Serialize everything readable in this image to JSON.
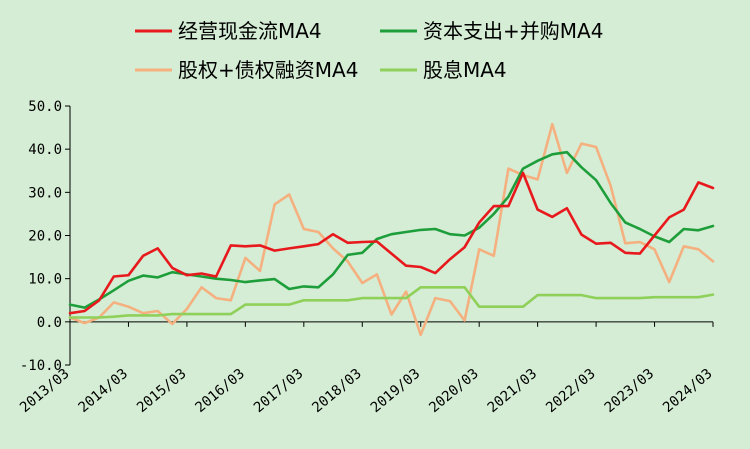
{
  "chart_data": {
    "type": "line",
    "ylim": [
      -10,
      50
    ],
    "yticks": [
      "50.0",
      "40.0",
      "30.0",
      "20.0",
      "10.0",
      "0.0",
      "-10.0"
    ],
    "ytick_values": [
      50,
      40,
      30,
      20,
      10,
      0,
      -10
    ],
    "x": [
      "2013/03",
      "2013/06",
      "2013/09",
      "2013/12",
      "2014/03",
      "2014/06",
      "2014/09",
      "2014/12",
      "2015/03",
      "2015/06",
      "2015/09",
      "2015/12",
      "2016/03",
      "2016/06",
      "2016/09",
      "2016/12",
      "2017/03",
      "2017/06",
      "2017/09",
      "2017/12",
      "2018/03",
      "2018/06",
      "2018/09",
      "2018/12",
      "2019/03",
      "2019/06",
      "2019/09",
      "2019/12",
      "2020/03",
      "2020/06",
      "2020/09",
      "2020/12",
      "2021/03",
      "2021/06",
      "2021/09",
      "2021/12",
      "2022/03",
      "2022/06",
      "2022/09",
      "2022/12",
      "2023/03",
      "2023/06",
      "2023/09",
      "2023/12",
      "2024/03"
    ],
    "xtick_labels": [
      "2013/03",
      "2014/03",
      "2015/03",
      "2016/03",
      "2017/03",
      "2018/03",
      "2019/03",
      "2020/03",
      "2021/03",
      "2022/03",
      "2023/03",
      "2024/03"
    ],
    "legend": {
      "placement": "top",
      "columns": 2
    },
    "grid": false,
    "series": [
      {
        "name": "经营现金流MA4",
        "color": "#e8191c",
        "values": [
          2.0,
          2.5,
          5.0,
          10.5,
          10.8,
          15.3,
          17.0,
          12.5,
          10.8,
          11.2,
          10.5,
          17.7,
          17.5,
          17.7,
          16.5,
          17.0,
          17.5,
          18.0,
          20.3,
          18.3,
          18.5,
          18.6,
          15.8,
          13.0,
          12.7,
          11.3,
          14.5,
          17.3,
          23.0,
          26.8,
          26.8,
          34.5,
          26.0,
          24.3,
          26.3,
          20.2,
          18.1,
          18.3,
          16.0,
          15.8,
          20.0,
          24.2,
          26.0,
          32.3,
          31.0
        ]
      },
      {
        "name": "资本支出+并购MA4",
        "color": "#1e9e3a",
        "values": [
          4.0,
          3.3,
          5.2,
          7.3,
          9.5,
          10.7,
          10.3,
          11.5,
          11.0,
          10.5,
          10.0,
          9.7,
          9.2,
          9.6,
          9.9,
          7.6,
          8.2,
          8.0,
          11.0,
          15.5,
          16.0,
          19.2,
          20.3,
          20.8,
          21.3,
          21.5,
          20.3,
          20.0,
          21.8,
          25.0,
          29.0,
          35.5,
          37.3,
          38.8,
          39.3,
          35.8,
          32.8,
          27.5,
          23.0,
          21.5,
          19.8,
          18.5,
          21.5,
          21.2,
          22.2
        ]
      },
      {
        "name": "股权+债权融资MA4",
        "color": "#f5b080",
        "values": [
          1.0,
          -0.3,
          1.0,
          4.5,
          3.5,
          2.0,
          2.5,
          -0.5,
          3.0,
          8.0,
          5.5,
          5.0,
          14.8,
          11.8,
          27.2,
          29.5,
          21.5,
          20.8,
          17.0,
          14.0,
          9.0,
          11.0,
          1.7,
          7.0,
          -3.0,
          5.5,
          4.8,
          0.3,
          16.8,
          15.3,
          35.5,
          34.0,
          33.0,
          45.8,
          34.5,
          41.3,
          40.5,
          31.5,
          18.2,
          18.5,
          16.8,
          9.2,
          17.5,
          16.8,
          14.0
        ]
      },
      {
        "name": "股息MA4",
        "color": "#8fd05a",
        "values": [
          1.0,
          1.0,
          1.0,
          1.2,
          1.5,
          1.5,
          1.5,
          1.8,
          1.8,
          1.8,
          1.8,
          1.8,
          4.0,
          4.0,
          4.0,
          4.0,
          5.0,
          5.0,
          5.0,
          5.0,
          5.5,
          5.5,
          5.5,
          5.5,
          8.0,
          8.0,
          8.0,
          8.0,
          3.5,
          3.5,
          3.5,
          3.5,
          6.2,
          6.2,
          6.2,
          6.2,
          5.5,
          5.5,
          5.5,
          5.5,
          5.7,
          5.7,
          5.7,
          5.7,
          6.3
        ]
      }
    ]
  }
}
